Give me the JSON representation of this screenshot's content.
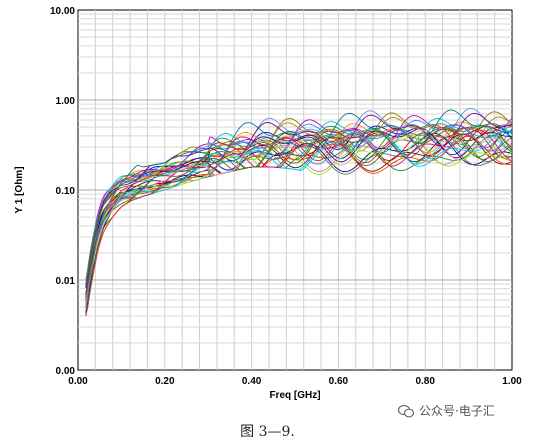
{
  "chart_data": {
    "type": "line",
    "title": "",
    "xlabel": "Freq [GHz]",
    "ylabel": "Y 1 [Ohm]",
    "xlim": [
      0,
      1.0
    ],
    "ylim": [
      0.0,
      10.0
    ],
    "yscale": "log",
    "x_ticks": [
      0.0,
      0.2,
      0.4,
      0.6,
      0.8,
      1.0
    ],
    "x_tick_labels": [
      "0.00",
      "0.20",
      "0.40",
      "0.60",
      "0.80",
      "1.00"
    ],
    "y_ticks": [
      0.001,
      0.01,
      0.1,
      1,
      10
    ],
    "y_tick_labels": [
      "0.00",
      "0.01",
      "0.10",
      "1.00",
      "10.00"
    ],
    "grid": true,
    "legend": "none",
    "series_count": 32,
    "series_colors": [
      "#222222",
      "#ff0000",
      "#00a000",
      "#0000ff",
      "#ff8c00",
      "#00c8c8",
      "#c000c0",
      "#808000",
      "#6495ed",
      "#228b22",
      "#8b0000",
      "#000080",
      "#ff69b4",
      "#00ced1",
      "#9acd32",
      "#a0522d",
      "#4b0082",
      "#dc143c",
      "#2e8b57",
      "#1e90ff",
      "#b8860b",
      "#800080",
      "#008080",
      "#ff4500",
      "#696969",
      "#7cfc00",
      "#00bfff",
      "#c71585",
      "#556b2f",
      "#d2b48c",
      "#4682b4",
      "#8b4513"
    ],
    "x": [
      0.02,
      0.03,
      0.04,
      0.05,
      0.06,
      0.08,
      0.1,
      0.12,
      0.15,
      0.2,
      0.25,
      0.3,
      0.35,
      0.4,
      0.45,
      0.5,
      0.55,
      0.6,
      0.65,
      0.7,
      0.75,
      0.8,
      0.85,
      0.9,
      0.95,
      1.0
    ],
    "envelope_upper": [
      0.01,
      0.03,
      0.055,
      0.09,
      0.14,
      0.19,
      0.24,
      0.2,
      0.18,
      0.2,
      0.28,
      0.38,
      0.48,
      0.6,
      0.65,
      0.7,
      0.72,
      0.75,
      0.8,
      0.85,
      0.9,
      0.95,
      1.0,
      0.95,
      0.9,
      0.85
    ],
    "envelope_lower": [
      0.004,
      0.008,
      0.015,
      0.025,
      0.035,
      0.05,
      0.065,
      0.075,
      0.085,
      0.1,
      0.12,
      0.14,
      0.16,
      0.18,
      0.18,
      0.17,
      0.15,
      0.12,
      0.11,
      0.1,
      0.08,
      0.07,
      0.075,
      0.065,
      0.06,
      0.06
    ],
    "median": [
      0.006,
      0.014,
      0.025,
      0.04,
      0.055,
      0.075,
      0.095,
      0.105,
      0.12,
      0.145,
      0.175,
      0.205,
      0.235,
      0.26,
      0.28,
      0.3,
      0.31,
      0.32,
      0.33,
      0.34,
      0.345,
      0.35,
      0.355,
      0.355,
      0.355,
      0.355
    ]
  },
  "caption": "图 3—9.",
  "watermark": {
    "text": "公众号·电子汇"
  }
}
